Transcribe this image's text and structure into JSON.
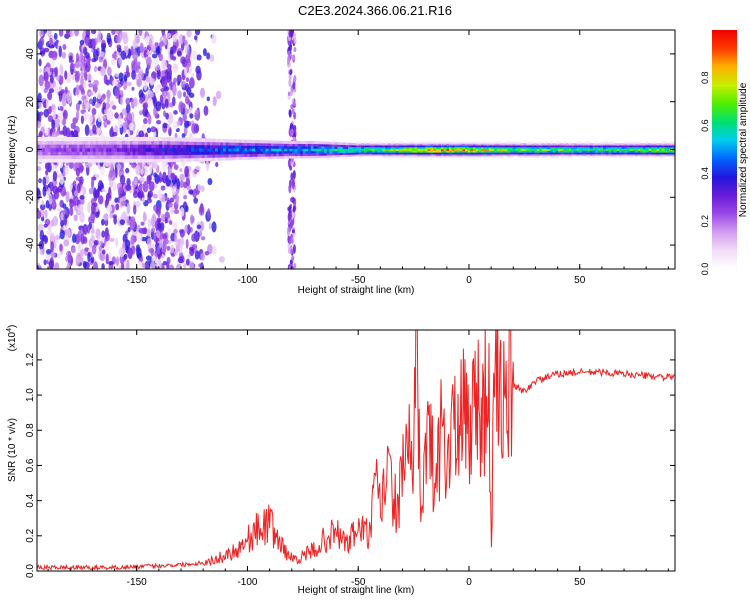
{
  "title": "C2E3.2024.366.06.21.R16",
  "colors": {
    "snr_line": "#ee2222",
    "colormap": [
      "#ffffff",
      "#f2dcf7",
      "#d29ef0",
      "#9b4ae8",
      "#6a1ad8",
      "#2218dd",
      "#0066ff",
      "#00ccee",
      "#00e070",
      "#50ee00",
      "#c8ee00",
      "#ffb000",
      "#ff3a00",
      "#ee0000"
    ]
  },
  "chart_data": [
    {
      "type": "heatmap",
      "title": "",
      "xlabel": "Height of straight line (km)",
      "ylabel": "Frequency (Hz)",
      "xlim": [
        -195,
        93
      ],
      "ylim": [
        -50,
        50
      ],
      "x_ticks": [
        -150,
        -100,
        -50,
        0,
        50
      ],
      "y_ticks": [
        -40,
        -20,
        0,
        20,
        40
      ],
      "colorbar": {
        "label": "Normalized spectral amplitude",
        "range": [
          0,
          1
        ],
        "ticks": [
          0.0,
          0.2,
          0.4,
          0.6,
          0.8
        ]
      },
      "band_center_freq_hz": 0,
      "band": {
        "x": [
          -195,
          -160,
          -140,
          -110,
          -80,
          -70,
          -50,
          -30,
          -15,
          0,
          20,
          60,
          93
        ],
        "peak_amplitude": [
          0.25,
          0.3,
          0.4,
          0.5,
          0.55,
          0.6,
          0.7,
          0.8,
          0.95,
          0.9,
          0.75,
          0.7,
          0.8
        ],
        "half_width_hz": [
          6,
          6,
          6,
          5,
          4,
          4,
          3,
          3,
          3,
          3,
          3,
          3,
          3
        ]
      },
      "scatter_noise_region_km": [
        -195,
        -110
      ],
      "vertical_streak_km": -80
    },
    {
      "type": "line",
      "title": "",
      "xlabel": "Height of straight line (km)",
      "ylabel": "SNR (10 * v/v)",
      "ylabel_multiplier": "(x10",
      "ylabel_multiplier_exp": "4",
      "ylabel_multiplier_close": ")",
      "xlim": [
        -195,
        93
      ],
      "ylim": [
        0,
        1.37
      ],
      "x_ticks": [
        -150,
        -100,
        -50,
        0,
        50
      ],
      "y_ticks": [
        0.0,
        0.2,
        0.4,
        0.6,
        0.8,
        1.0,
        1.2
      ],
      "series": [
        {
          "x": [
            -195,
            -180,
            -160,
            -140,
            -125,
            -115,
            -105,
            -100,
            -95,
            -90,
            -85,
            -80,
            -75,
            -70,
            -65,
            -60,
            -55,
            -50,
            -45,
            -42,
            -40,
            -37,
            -35,
            -32,
            -30,
            -28,
            -25,
            -24,
            -22,
            -20,
            -18,
            -15,
            -12,
            -10,
            -8,
            -5,
            -2,
            0,
            3,
            6,
            9,
            10,
            11,
            13,
            16,
            20,
            25,
            30,
            40,
            50,
            60,
            70,
            80,
            93
          ],
          "y": [
            0.02,
            0.02,
            0.02,
            0.03,
            0.04,
            0.06,
            0.12,
            0.18,
            0.24,
            0.27,
            0.15,
            0.07,
            0.08,
            0.12,
            0.18,
            0.22,
            0.15,
            0.25,
            0.2,
            0.48,
            0.35,
            0.58,
            0.45,
            0.35,
            0.55,
            0.82,
            0.4,
            1.36,
            0.45,
            0.6,
            0.78,
            0.48,
            0.9,
            0.55,
            0.88,
            0.72,
            0.95,
            0.8,
            1.0,
            0.92,
            1.05,
            0.08,
            0.85,
            1.15,
            0.95,
            1.05,
            1.02,
            1.08,
            1.12,
            1.13,
            1.13,
            1.12,
            1.11,
            1.1
          ]
        }
      ]
    }
  ]
}
